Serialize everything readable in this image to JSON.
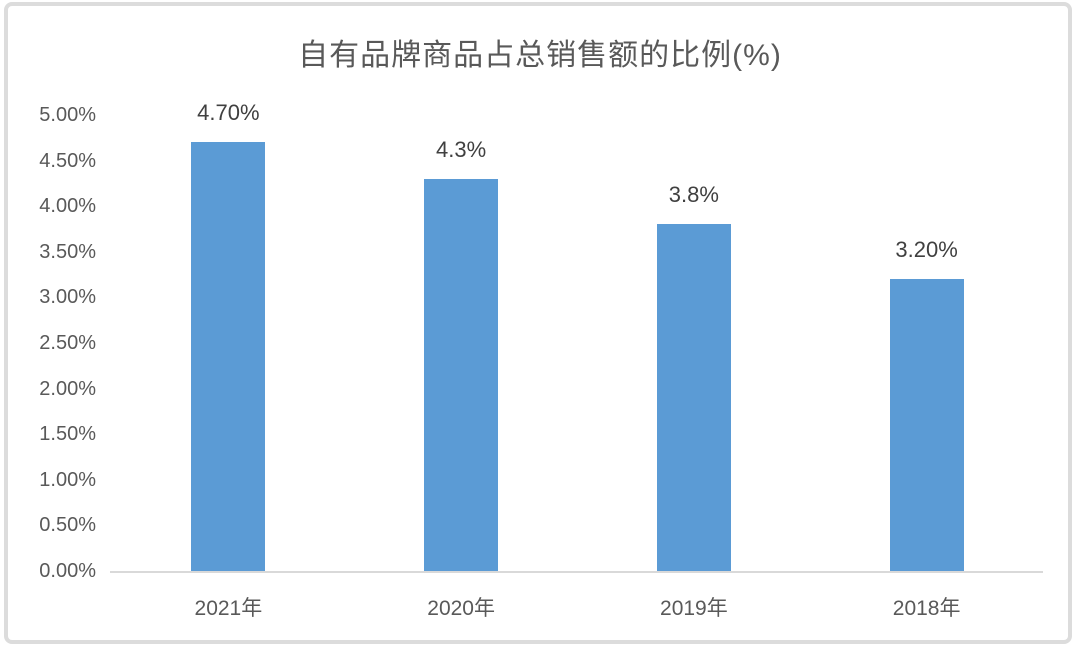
{
  "chart_data": {
    "type": "bar",
    "title": "自有品牌商品占总销售额的比例(%)",
    "categories": [
      "2021年",
      "2020年",
      "2019年",
      "2018年"
    ],
    "values": [
      4.7,
      4.3,
      3.8,
      3.2
    ],
    "data_labels": [
      "4.70%",
      "4.3%",
      "3.8%",
      "3.20%"
    ],
    "y_ticks": [
      "5.00%",
      "4.50%",
      "4.00%",
      "3.50%",
      "3.00%",
      "2.50%",
      "2.00%",
      "1.50%",
      "1.00%",
      "0.50%",
      "0.00%"
    ],
    "xlabel": "",
    "ylabel": "",
    "ylim": [
      0,
      5
    ],
    "grid": false,
    "legend": "none",
    "colors": {
      "bar": "#5B9BD5",
      "title_text": "#595959",
      "axis_text": "#595959",
      "data_label_text": "#404040",
      "axis_line": "#d9d9d9",
      "frame_border": "#dcdcdc",
      "background": "#ffffff"
    }
  }
}
